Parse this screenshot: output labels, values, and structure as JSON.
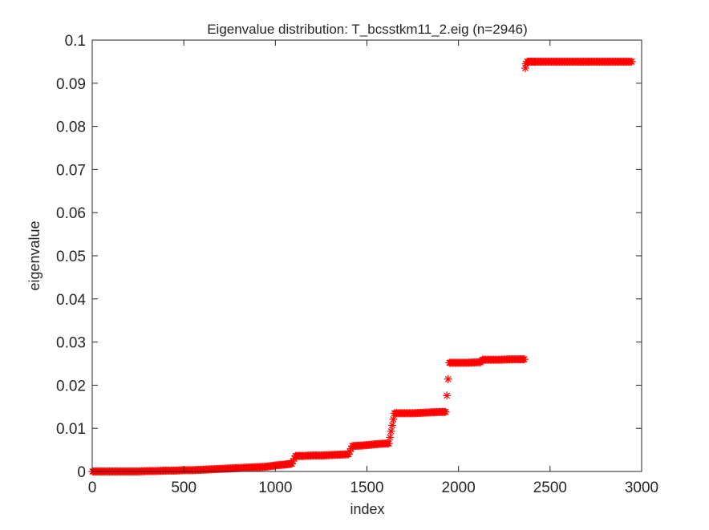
{
  "chart_data": {
    "type": "scatter",
    "title": "Eigenvalue distribution: T_bcsstkm11_2.eig (n=2946)",
    "xlabel": "index",
    "ylabel": "eigenvalue",
    "xlim": [
      0,
      3000
    ],
    "ylim": [
      0,
      0.1
    ],
    "xticks": [
      0,
      500,
      1000,
      1500,
      2000,
      2500,
      3000
    ],
    "xtick_labels": [
      "0",
      "500",
      "1000",
      "1500",
      "2000",
      "2500",
      "3000"
    ],
    "yticks": [
      0,
      0.01,
      0.02,
      0.03,
      0.04,
      0.05,
      0.06,
      0.07,
      0.08,
      0.09,
      0.1
    ],
    "ytick_labels": [
      "0",
      "0.01",
      "0.02",
      "0.03",
      "0.04",
      "0.05",
      "0.06",
      "0.07",
      "0.08",
      "0.09",
      "0.1"
    ],
    "grid": false,
    "marker": "*",
    "marker_color": "#ff0000",
    "series": [
      {
        "points": [
          [
            1,
            0.0
          ],
          [
            50,
            0.0
          ],
          [
            100,
            0.0
          ],
          [
            150,
            0.0
          ],
          [
            200,
            0.0
          ],
          [
            250,
            0.0
          ],
          [
            300,
            0.0001
          ],
          [
            350,
            0.0001
          ],
          [
            400,
            0.0002
          ],
          [
            450,
            0.0002
          ],
          [
            500,
            0.0003
          ],
          [
            550,
            0.0003
          ],
          [
            600,
            0.0004
          ],
          [
            650,
            0.0005
          ],
          [
            700,
            0.0006
          ],
          [
            750,
            0.0007
          ],
          [
            800,
            0.0008
          ],
          [
            850,
            0.0009
          ],
          [
            900,
            0.001
          ],
          [
            950,
            0.0011
          ],
          [
            1000,
            0.0014
          ],
          [
            1050,
            0.0016
          ],
          [
            1090,
            0.0018
          ],
          [
            1110,
            0.0036
          ],
          [
            1150,
            0.0036
          ],
          [
            1200,
            0.0037
          ],
          [
            1250,
            0.0037
          ],
          [
            1300,
            0.0038
          ],
          [
            1350,
            0.0039
          ],
          [
            1400,
            0.004
          ],
          [
            1420,
            0.0059
          ],
          [
            1470,
            0.006
          ],
          [
            1520,
            0.0062
          ],
          [
            1570,
            0.0064
          ],
          [
            1620,
            0.0065
          ],
          [
            1650,
            0.0135
          ],
          [
            1700,
            0.0135
          ],
          [
            1750,
            0.0135
          ],
          [
            1800,
            0.0136
          ],
          [
            1850,
            0.0137
          ],
          [
            1900,
            0.0138
          ],
          [
            1930,
            0.0138
          ],
          [
            1950,
            0.0252
          ],
          [
            2000,
            0.0252
          ],
          [
            2050,
            0.0252
          ],
          [
            2100,
            0.0253
          ],
          [
            2120,
            0.0253
          ],
          [
            2130,
            0.0259
          ],
          [
            2180,
            0.0259
          ],
          [
            2230,
            0.0259
          ],
          [
            2280,
            0.026
          ],
          [
            2330,
            0.026
          ],
          [
            2360,
            0.026
          ],
          [
            2365,
            0.0935
          ],
          [
            2368,
            0.0945
          ],
          [
            2375,
            0.095
          ],
          [
            2420,
            0.095
          ],
          [
            2470,
            0.095
          ],
          [
            2520,
            0.095
          ],
          [
            2570,
            0.095
          ],
          [
            2620,
            0.095
          ],
          [
            2670,
            0.095
          ],
          [
            2720,
            0.095
          ],
          [
            2770,
            0.095
          ],
          [
            2820,
            0.095
          ],
          [
            2870,
            0.095
          ],
          [
            2920,
            0.095
          ],
          [
            2946,
            0.095
          ]
        ]
      }
    ]
  }
}
